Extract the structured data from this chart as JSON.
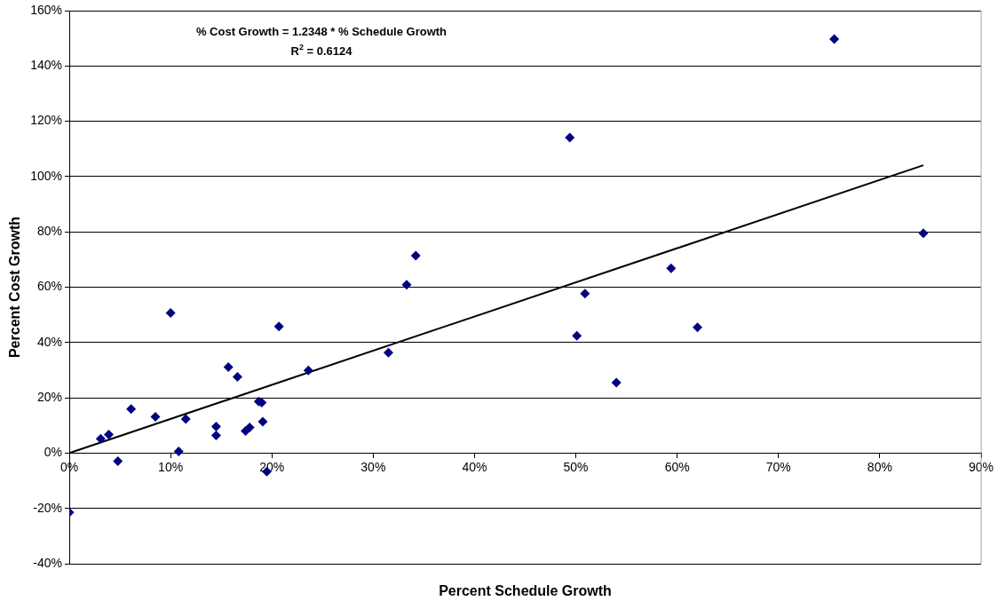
{
  "chart_data": {
    "type": "scatter",
    "xlabel": "Percent Schedule Growth",
    "ylabel": "Percent Cost Growth",
    "annotations": [
      "% Cost Growth = 1.2348 * % Schedule Growth",
      "R$^{2}$ = 0.6124"
    ],
    "xlim": [
      0,
      90
    ],
    "xticks": [
      {
        "value": 0,
        "label": "0%"
      },
      {
        "value": 10,
        "label": "10%"
      },
      {
        "value": 20,
        "label": "20%"
      },
      {
        "value": 30,
        "label": "30%"
      },
      {
        "value": 40,
        "label": "40%"
      },
      {
        "value": 50,
        "label": "50%"
      },
      {
        "value": 60,
        "label": "60%"
      },
      {
        "value": 70,
        "label": "70%"
      },
      {
        "value": 80,
        "label": "80%"
      },
      {
        "value": 90,
        "label": "90%"
      }
    ],
    "ylim": [
      -40,
      160
    ],
    "yticks": [
      {
        "value": -40,
        "label": "-40%"
      },
      {
        "value": -20,
        "label": "-20%"
      },
      {
        "value": 0,
        "label": "0%"
      },
      {
        "value": 20,
        "label": "20%"
      },
      {
        "value": 40,
        "label": "40%"
      },
      {
        "value": 60,
        "label": "60%"
      },
      {
        "value": 80,
        "label": "80%"
      },
      {
        "value": 100,
        "label": "100%"
      },
      {
        "value": 120,
        "label": "120%"
      },
      {
        "value": 140,
        "label": "140%"
      },
      {
        "value": 160,
        "label": "160%"
      }
    ],
    "grid": "y",
    "legend": false,
    "marker": "diamond",
    "series": [
      {
        "type": "scatter",
        "color": "#000080",
        "x": [
          0,
          3.1,
          3.9,
          4.8,
          6.1,
          8.5,
          10.8,
          11.5,
          14.5,
          14.5,
          15.7,
          16.6,
          17.4,
          17.8,
          18.7,
          19.0,
          19.1,
          19.5,
          23.6,
          10.0,
          20.7,
          31.5,
          33.3,
          34.2,
          49.4,
          50.9,
          50.1,
          54.0,
          59.4,
          62.0,
          75.5,
          84.3
        ],
        "values": [
          -21.5,
          5.2,
          6.7,
          -2.9,
          15.9,
          13.1,
          0.6,
          12.3,
          9.6,
          6.4,
          31.1,
          27.6,
          8.0,
          9.3,
          18.7,
          18.3,
          11.4,
          -6.7,
          29.9,
          50.7,
          45.8,
          36.3,
          60.9,
          71.4,
          114.1,
          57.7,
          42.4,
          25.5,
          66.8,
          45.5,
          149.7,
          79.5
        ]
      },
      {
        "type": "line",
        "color": "#000000",
        "marker": "none",
        "x": [
          0,
          84.3
        ],
        "values": [
          0,
          104.1
        ]
      }
    ]
  }
}
